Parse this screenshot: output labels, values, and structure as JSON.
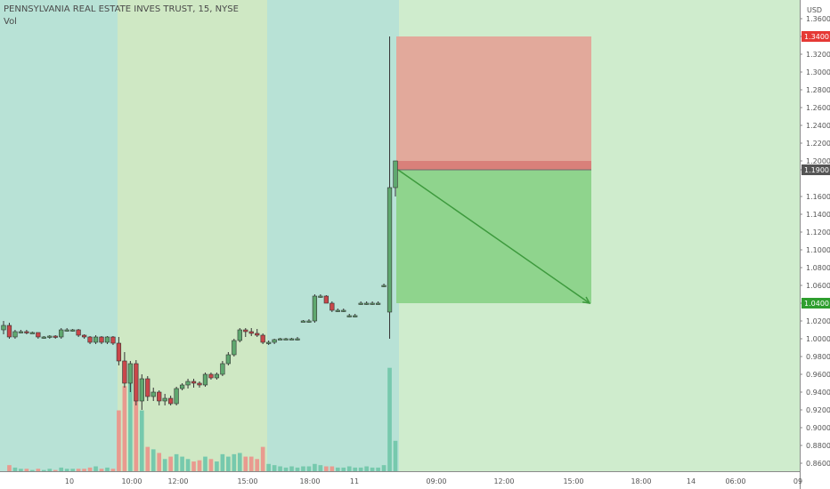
{
  "header": {
    "symbol_line": "PENNSYLVANIA REAL ESTATE INVES TRUST, 15, NYSE",
    "indicator": "Vol"
  },
  "currency_label": "USD",
  "colors": {
    "up": "#5fa86f",
    "down": "#c9474a",
    "vol_up": "#76c9ad",
    "vol_down": "#e99a8f",
    "session_a": "#b8e2d6",
    "session_b": "#cfe8c4",
    "future": "#cfeccd",
    "target_zone": "#8fd48d",
    "stop_zone": "#e2a99b",
    "arrow": "#3d9a3d",
    "badge_stop": "#e53935",
    "badge_price": "#555555",
    "badge_target": "#2e9e2e"
  },
  "price_badges": {
    "stop": "1.3400",
    "current": "1.1900",
    "target": "1.0400"
  },
  "chart_data": {
    "type": "candlestick",
    "title": "PENNSYLVANIA REAL ESTATE INVES TRUST, 15, NYSE",
    "ylim": [
      0.855,
      1.375
    ],
    "y_ticks": [
      "1.3600",
      "1.3400",
      "1.3200",
      "1.3000",
      "1.2800",
      "1.2600",
      "1.2400",
      "1.2200",
      "1.2000",
      "1.1900",
      "1.1600",
      "1.1400",
      "1.1200",
      "1.1000",
      "1.0800",
      "1.0600",
      "1.0400",
      "1.0200",
      "1.0000",
      "0.9800",
      "0.9600",
      "0.9400",
      "0.9200",
      "0.9000",
      "0.8800",
      "0.8600"
    ],
    "x_ticks": [
      "10",
      "10:00",
      "12:00",
      "15:00",
      "18:00",
      "11",
      "09:00",
      "12:00",
      "15:00",
      "18:00",
      "14",
      "06:00",
      "09"
    ],
    "candles": [
      [
        1.01,
        1.02,
        1.005,
        1.015
      ],
      [
        1.015,
        1.018,
        1.0,
        1.002
      ],
      [
        1.002,
        1.01,
        1.0,
        1.008
      ],
      [
        1.008,
        1.01,
        1.006,
        1.008
      ],
      [
        1.008,
        1.01,
        1.005,
        1.007
      ],
      [
        1.007,
        1.008,
        1.006,
        1.007
      ],
      [
        1.007,
        1.007,
        1.0,
        1.002
      ],
      [
        1.002,
        1.003,
        1.0,
        1.002
      ],
      [
        1.002,
        1.004,
        1.0,
        1.003
      ],
      [
        1.003,
        1.004,
        1.0,
        1.002
      ],
      [
        1.002,
        1.012,
        1.0,
        1.01
      ],
      [
        1.01,
        1.012,
        1.008,
        1.01
      ],
      [
        1.01,
        1.011,
        1.008,
        1.01
      ],
      [
        1.01,
        1.011,
        1.002,
        1.004
      ],
      [
        1.004,
        1.005,
        1.0,
        1.002
      ],
      [
        1.002,
        1.003,
        0.994,
        0.996
      ],
      [
        0.996,
        1.004,
        0.994,
        1.002
      ],
      [
        1.002,
        1.003,
        0.994,
        0.996
      ],
      [
        0.996,
        1.003,
        0.994,
        1.002
      ],
      [
        1.002,
        1.003,
        0.993,
        0.995
      ],
      [
        0.995,
        1.002,
        0.97,
        0.975
      ],
      [
        0.975,
        0.985,
        0.945,
        0.95
      ],
      [
        0.95,
        0.975,
        0.94,
        0.972
      ],
      [
        0.972,
        0.976,
        0.925,
        0.93
      ],
      [
        0.93,
        0.96,
        0.92,
        0.955
      ],
      [
        0.955,
        0.958,
        0.93,
        0.935
      ],
      [
        0.935,
        0.945,
        0.93,
        0.94
      ],
      [
        0.94,
        0.942,
        0.925,
        0.93
      ],
      [
        0.93,
        0.938,
        0.925,
        0.933
      ],
      [
        0.933,
        0.936,
        0.925,
        0.927
      ],
      [
        0.927,
        0.946,
        0.925,
        0.944
      ],
      [
        0.944,
        0.95,
        0.942,
        0.948
      ],
      [
        0.948,
        0.955,
        0.944,
        0.952
      ],
      [
        0.952,
        0.955,
        0.945,
        0.95
      ],
      [
        0.95,
        0.952,
        0.945,
        0.948
      ],
      [
        0.948,
        0.962,
        0.946,
        0.96
      ],
      [
        0.96,
        0.962,
        0.954,
        0.956
      ],
      [
        0.956,
        0.962,
        0.954,
        0.96
      ],
      [
        0.96,
        0.975,
        0.958,
        0.972
      ],
      [
        0.972,
        0.985,
        0.97,
        0.982
      ],
      [
        0.982,
        1.0,
        0.98,
        0.998
      ],
      [
        0.998,
        1.012,
        0.996,
        1.01
      ],
      [
        1.01,
        1.012,
        1.002,
        1.008
      ],
      [
        1.008,
        1.012,
        1.003,
        1.006
      ],
      [
        1.006,
        1.011,
        1.002,
        1.004
      ],
      [
        1.004,
        1.006,
        0.994,
        0.996
      ],
      [
        0.996,
        0.998,
        0.993,
        0.996
      ],
      [
        0.996,
        1.0,
        0.994,
        0.999
      ],
      [
        1.0,
        1.001,
        0.999,
        1.0
      ],
      [
        1.0,
        1.001,
        0.999,
        1.0
      ],
      [
        1.0,
        1.001,
        0.999,
        1.0
      ],
      [
        1.0,
        1.002,
        0.998,
        1.0
      ],
      [
        1.02,
        1.021,
        1.019,
        1.02
      ],
      [
        1.02,
        1.022,
        1.018,
        1.02
      ],
      [
        1.02,
        1.05,
        1.018,
        1.048
      ],
      [
        1.048,
        1.05,
        1.046,
        1.048
      ],
      [
        1.048,
        1.049,
        1.04,
        1.04
      ],
      [
        1.04,
        1.042,
        1.03,
        1.032
      ],
      [
        1.032,
        1.034,
        1.03,
        1.032
      ],
      [
        1.032,
        1.034,
        1.03,
        1.032
      ],
      [
        1.026,
        1.028,
        1.024,
        1.026
      ],
      [
        1.026,
        1.028,
        1.024,
        1.026
      ],
      [
        1.04,
        1.042,
        1.038,
        1.04
      ],
      [
        1.04,
        1.042,
        1.038,
        1.04
      ],
      [
        1.04,
        1.042,
        1.038,
        1.04
      ],
      [
        1.04,
        1.042,
        1.038,
        1.04
      ],
      [
        1.06,
        1.062,
        1.058,
        1.06
      ],
      [
        1.03,
        1.34,
        1.0,
        1.17
      ],
      [
        1.17,
        1.2,
        1.16,
        1.2
      ]
    ],
    "volumes": [
      0.0,
      0.005,
      0.003,
      0.002,
      0.002,
      0.001,
      0.002,
      0.001,
      0.002,
      0.001,
      0.003,
      0.002,
      0.002,
      0.002,
      0.002,
      0.003,
      0.004,
      0.002,
      0.003,
      0.002,
      0.05,
      0.07,
      0.08,
      0.06,
      0.05,
      0.02,
      0.018,
      0.015,
      0.01,
      0.012,
      0.014,
      0.012,
      0.01,
      0.008,
      0.009,
      0.012,
      0.01,
      0.008,
      0.014,
      0.012,
      0.014,
      0.015,
      0.012,
      0.012,
      0.01,
      0.02,
      0.006,
      0.005,
      0.004,
      0.003,
      0.004,
      0.003,
      0.004,
      0.004,
      0.006,
      0.005,
      0.004,
      0.004,
      0.003,
      0.003,
      0.004,
      0.003,
      0.003,
      0.004,
      0.003,
      0.003,
      0.005,
      0.085,
      0.025
    ],
    "risk_reward": {
      "entry": 1.19,
      "stop": 1.34,
      "target": 1.04,
      "target_time_label": "15:00"
    }
  }
}
